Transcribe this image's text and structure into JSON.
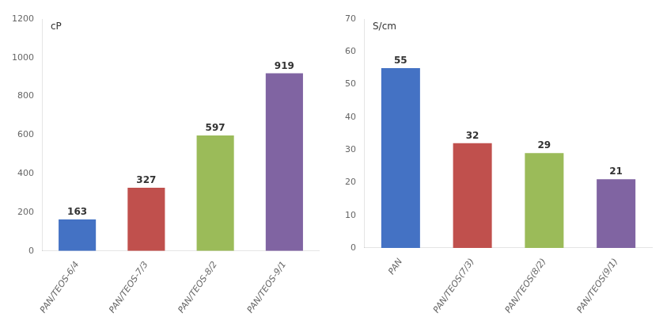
{
  "chart_data": [
    {
      "type": "bar",
      "categories": [
        "PAN/TEOS-6/4",
        "PAN/TEOS-7/3",
        "PAN/TEOS-8/2",
        "PAN/TEOS-9/1"
      ],
      "values": [
        163,
        327,
        597,
        919
      ],
      "colors": [
        "#4472C4",
        "#C0504D",
        "#9BBB59",
        "#8064A2"
      ],
      "ylim": [
        0,
        1200
      ],
      "yticks": [
        0,
        200,
        400,
        600,
        800,
        1000,
        1200
      ],
      "annotations": [
        "cP"
      ],
      "data_labels": true,
      "grid": false
    },
    {
      "type": "bar",
      "categories": [
        "PAN",
        "PAN/TEOS(7/3)",
        "PAN/TEOS(8/2)",
        "PAN/TEOS(9/1)"
      ],
      "values": [
        55,
        32,
        29,
        21
      ],
      "colors": [
        "#4472C4",
        "#C0504D",
        "#9BBB59",
        "#8064A2"
      ],
      "ylim": [
        0,
        70
      ],
      "yticks": [
        0,
        10,
        20,
        30,
        40,
        50,
        60,
        70
      ],
      "annotations": [
        "S/cm"
      ],
      "data_labels": true,
      "grid": false
    }
  ]
}
